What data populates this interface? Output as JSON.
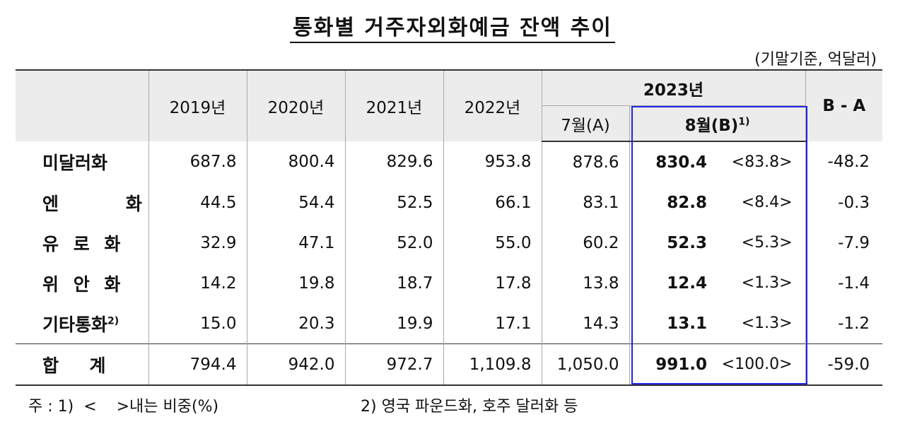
{
  "title": "통화별 거주자외화예금 잔액 추이",
  "unit": "(기말기준, 억달러)",
  "header": {
    "years": [
      "2019년",
      "2020년",
      "2021년",
      "2022년"
    ],
    "group_2023": "2023년",
    "jul": "7월(A)",
    "aug": "8월(B)",
    "aug_sup": "1)",
    "diff": "B - A"
  },
  "rows": [
    {
      "label": "미달러화",
      "sup": "",
      "v2019": "687.8",
      "v2020": "800.4",
      "v2021": "829.6",
      "v2022": "953.8",
      "jul": "878.6",
      "aug": "830.4",
      "share": "<83.8>",
      "diff": "-48.2"
    },
    {
      "label": "엔    화",
      "sup": "",
      "v2019": "44.5",
      "v2020": "54.4",
      "v2021": "52.5",
      "v2022": "66.1",
      "jul": "83.1",
      "aug": "82.8",
      "share": "<8.4>",
      "diff": "-0.3"
    },
    {
      "label": "유 로 화",
      "sup": "",
      "v2019": "32.9",
      "v2020": "47.1",
      "v2021": "52.0",
      "v2022": "55.0",
      "jul": "60.2",
      "aug": "52.3",
      "share": "<5.3>",
      "diff": "-7.9"
    },
    {
      "label": "위 안 화",
      "sup": "",
      "v2019": "14.2",
      "v2020": "19.8",
      "v2021": "18.7",
      "v2022": "17.8",
      "jul": "13.8",
      "aug": "12.4",
      "share": "<1.3>",
      "diff": "-1.4"
    },
    {
      "label": "기타통화",
      "sup": "2)",
      "v2019": "15.0",
      "v2020": "20.3",
      "v2021": "19.9",
      "v2022": "17.1",
      "jul": "14.3",
      "aug": "13.1",
      "share": "<1.3>",
      "diff": "-1.2"
    }
  ],
  "total": {
    "label": "합     계",
    "v2019": "794.4",
    "v2020": "942.0",
    "v2021": "972.7",
    "v2022": "1,109.8",
    "jul": "1,050.0",
    "aug": "991.0",
    "share": "<100.0>",
    "diff": "-59.0"
  },
  "notes": {
    "note1": "주 : 1)  <    >내는 비중(%)",
    "note2": "2)  영국 파운드화, 호주 달러화 등"
  },
  "colors": {
    "highlight_box": "#1f25e6",
    "header_bg": "#ececec"
  }
}
